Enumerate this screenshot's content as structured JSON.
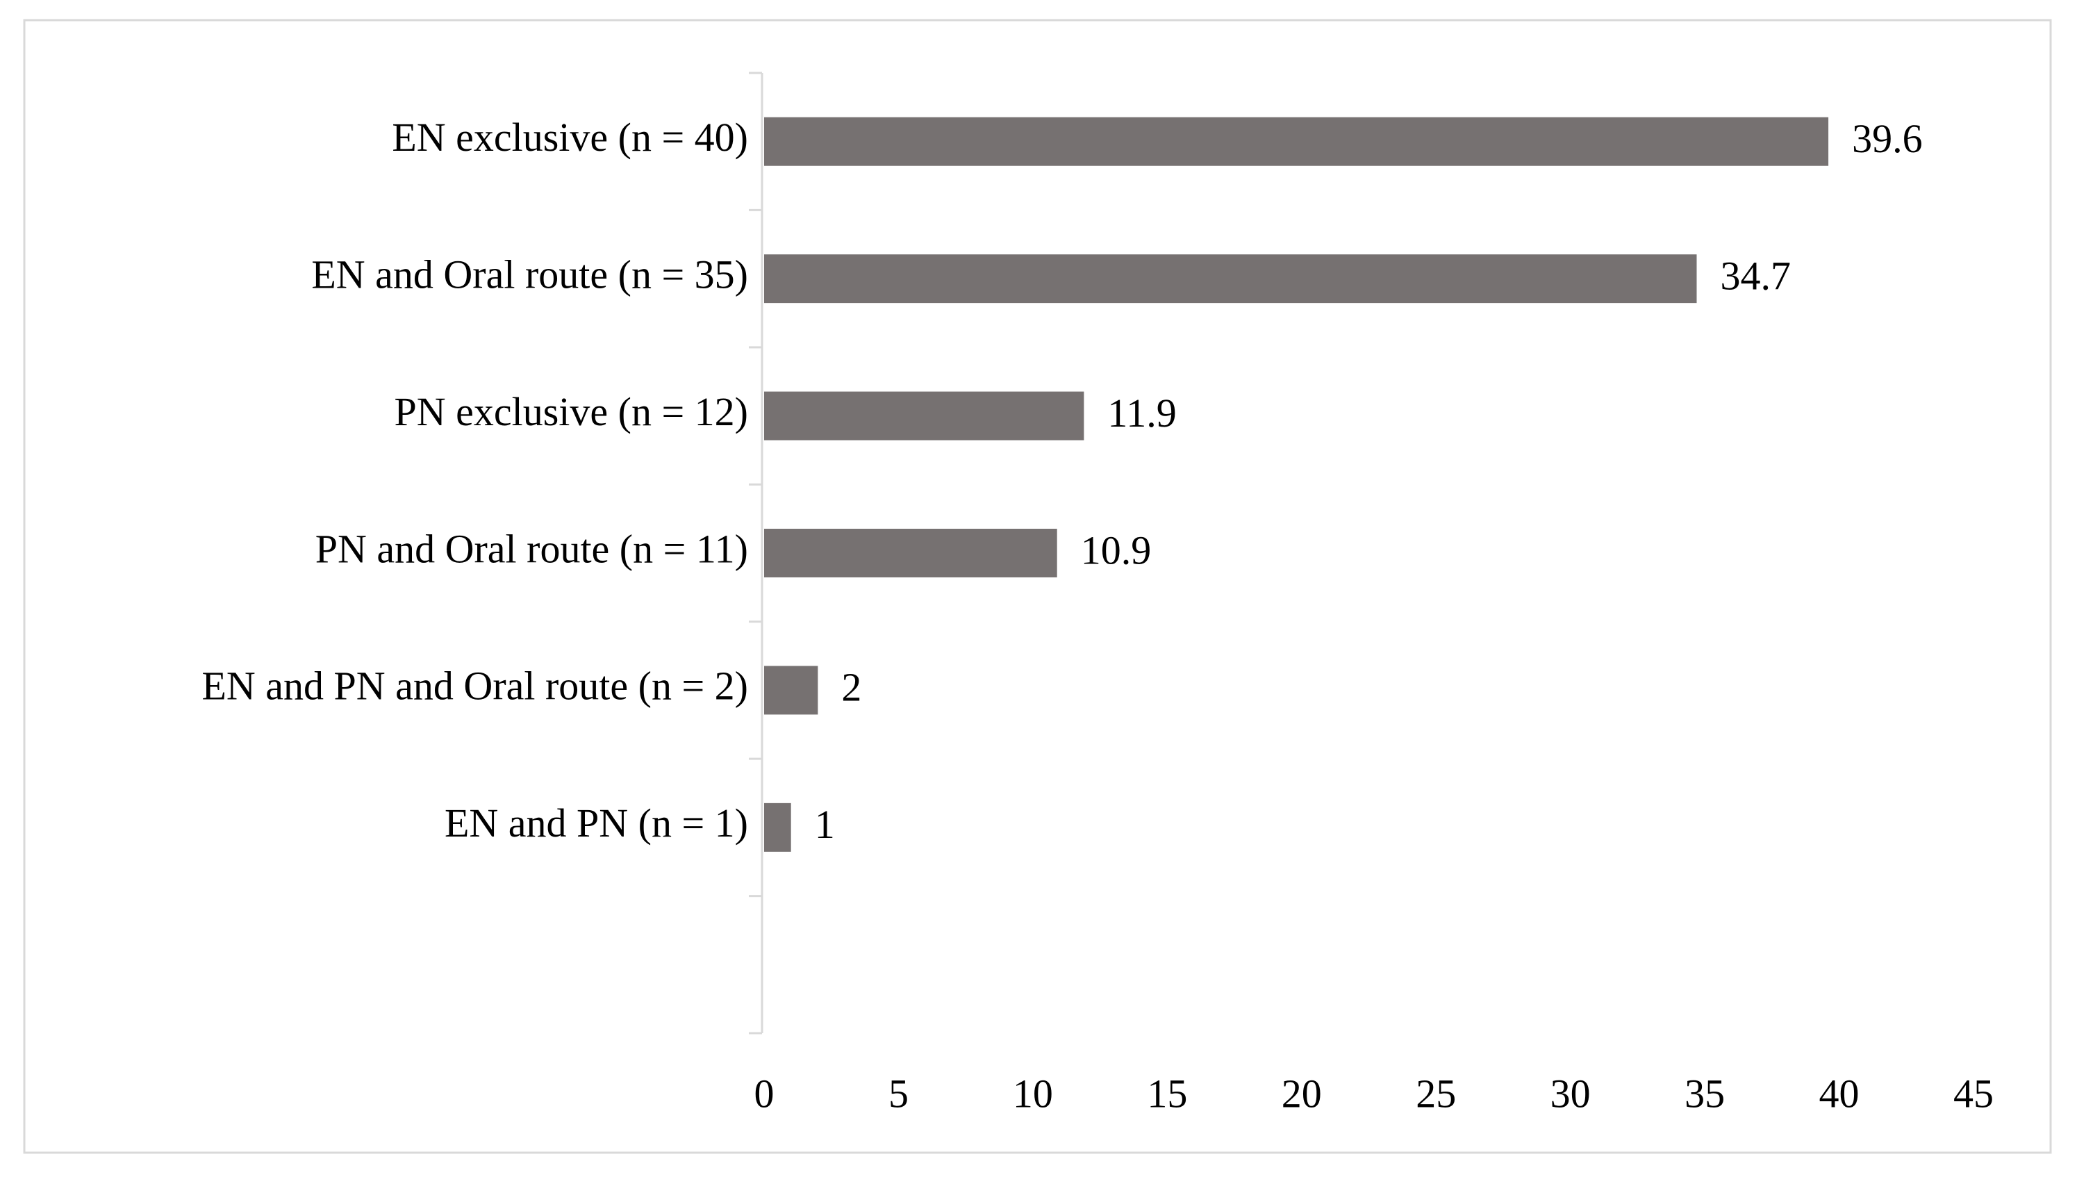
{
  "chart_data": {
    "type": "hbar",
    "categories": [
      "EN exclusive (n = 40)",
      "EN and Oral route (n = 35)",
      "PN exclusive (n = 12)",
      "PN and Oral route (n = 11)",
      "EN and PN and Oral route (n = 2)",
      "EN and PN (n = 1)",
      null
    ],
    "values": [
      39.6,
      34.7,
      11.9,
      10.9,
      2,
      1,
      null
    ],
    "color": "#767171",
    "xlim": [
      0,
      45
    ],
    "xticks": [
      0,
      5,
      10,
      15,
      20,
      25,
      30,
      35,
      40,
      45
    ]
  }
}
